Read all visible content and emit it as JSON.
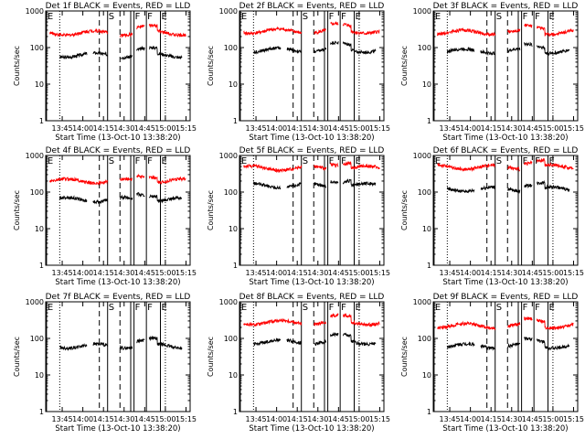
{
  "chart_data": [
    {
      "type": "line",
      "title": "Det 1f BLACK = Events, RED = LLD",
      "ylabel": "Counts/sec",
      "xlabel": "Start Time (13-Oct-10 13:38:20)",
      "x_ticks": [
        "13:45",
        "14:00",
        "14:15",
        "14:30",
        "14:45",
        "15:00",
        "15:15"
      ],
      "y_ticks": [
        "1",
        "10",
        "100",
        "1000"
      ],
      "xlim": [
        13.55,
        15.3
      ],
      "ylim": [
        1,
        1000
      ],
      "log_y": true,
      "series": [
        {
          "name": "Events",
          "color": "#000000",
          "level": 62
        },
        {
          "name": "LLD",
          "color": "#ff0000",
          "level": 250
        }
      ],
      "gaps": [
        [
          14.3,
          14.45
        ],
        [
          14.6,
          14.65
        ],
        [
          14.75,
          14.8
        ]
      ]
    },
    {
      "type": "line",
      "title": "Det 2f BLACK = Events, RED = LLD",
      "ylabel": "Counts/sec",
      "xlabel": "Start Time (13-Oct-10 13:38:20)",
      "x_ticks": [
        "13:45",
        "14:00",
        "14:15",
        "14:30",
        "14:45",
        "15:00",
        "15:15"
      ],
      "y_ticks": [
        "1",
        "10",
        "100",
        "1000"
      ],
      "xlim": [
        13.55,
        15.3
      ],
      "ylim": [
        1,
        1000
      ],
      "log_y": true,
      "series": [
        {
          "name": "Events",
          "color": "#000000",
          "level": 85
        },
        {
          "name": "LLD",
          "color": "#ff0000",
          "level": 280
        }
      ],
      "gaps": [
        [
          14.3,
          14.45
        ],
        [
          14.6,
          14.65
        ],
        [
          14.75,
          14.8
        ]
      ]
    },
    {
      "type": "line",
      "title": "Det 3f BLACK = Events, RED = LLD",
      "ylabel": "Counts/sec",
      "xlabel": "Start Time (13-Oct-10 13:38:20)",
      "x_ticks": [
        "13:45",
        "14:00",
        "14:15",
        "14:30",
        "14:45",
        "15:00",
        "15:15"
      ],
      "y_ticks": [
        "1",
        "10",
        "100",
        "1000"
      ],
      "xlim": [
        13.55,
        15.3
      ],
      "ylim": [
        1,
        1000
      ],
      "log_y": true,
      "series": [
        {
          "name": "Events",
          "color": "#000000",
          "level": 80
        },
        {
          "name": "LLD",
          "color": "#ff0000",
          "level": 260
        }
      ],
      "gaps": [
        [
          14.3,
          14.45
        ],
        [
          14.6,
          14.65
        ],
        [
          14.75,
          14.8
        ]
      ]
    },
    {
      "type": "line",
      "title": "Det 4f BLACK = Events, RED = LLD",
      "ylabel": "Counts/sec",
      "xlabel": "Start Time (13-Oct-10 13:38:20)",
      "x_ticks": [
        "13:45",
        "14:00",
        "14:15",
        "14:30",
        "14:45",
        "15:00",
        "15:15"
      ],
      "y_ticks": [
        "1",
        "10",
        "100",
        "1000"
      ],
      "xlim": [
        13.55,
        15.3
      ],
      "ylim": [
        1,
        1000
      ],
      "log_y": true,
      "series": [
        {
          "name": "Events",
          "color": "#000000",
          "level": 62
        },
        {
          "name": "LLD",
          "color": "#ff0000",
          "level": 200
        }
      ],
      "gaps": [
        [
          14.3,
          14.45
        ],
        [
          14.6,
          14.65
        ],
        [
          14.75,
          14.8
        ]
      ]
    },
    {
      "type": "line",
      "title": "Det 5f BLACK = Events, RED = LLD",
      "ylabel": "Counts/sec",
      "xlabel": "Start Time (13-Oct-10 13:38:20)",
      "x_ticks": [
        "13:45",
        "14:00",
        "14:15",
        "14:30",
        "14:45",
        "15:00",
        "15:15"
      ],
      "y_ticks": [
        "1",
        "10",
        "100",
        "1000"
      ],
      "xlim": [
        13.55,
        15.3
      ],
      "ylim": [
        1,
        1000
      ],
      "log_y": true,
      "series": [
        {
          "name": "Events",
          "color": "#000000",
          "level": 150
        },
        {
          "name": "LLD",
          "color": "#ff0000",
          "level": 450
        }
      ],
      "gaps": [
        [
          14.3,
          14.45
        ],
        [
          14.6,
          14.65
        ],
        [
          14.75,
          14.8
        ]
      ]
    },
    {
      "type": "line",
      "title": "Det 6f BLACK = Events, RED = LLD",
      "ylabel": "Counts/sec",
      "xlabel": "Start Time (13-Oct-10 13:38:20)",
      "x_ticks": [
        "13:45",
        "14:00",
        "14:15",
        "14:30",
        "14:45",
        "15:00",
        "15:15"
      ],
      "y_ticks": [
        "1",
        "10",
        "100",
        "1000"
      ],
      "xlim": [
        13.55,
        15.3
      ],
      "ylim": [
        1,
        1000
      ],
      "log_y": true,
      "series": [
        {
          "name": "Events",
          "color": "#000000",
          "level": 120
        },
        {
          "name": "LLD",
          "color": "#ff0000",
          "level": 480
        }
      ],
      "gaps": [
        [
          14.3,
          14.45
        ],
        [
          14.6,
          14.65
        ],
        [
          14.75,
          14.8
        ]
      ]
    },
    {
      "type": "line",
      "title": "Det 7f BLACK = Events, RED = LLD",
      "ylabel": "Counts/sec",
      "xlabel": "Start Time (13-Oct-10 13:38:20)",
      "x_ticks": [
        "13:45",
        "14:00",
        "14:15",
        "14:30",
        "14:45",
        "15:00",
        "15:15"
      ],
      "y_ticks": [
        "1",
        "10",
        "100",
        "1000"
      ],
      "xlim": [
        13.55,
        15.3
      ],
      "ylim": [
        1,
        1000
      ],
      "log_y": true,
      "series": [
        {
          "name": "Events",
          "color": "#000000",
          "level": 62
        }
      ],
      "gaps": [
        [
          14.3,
          14.45
        ],
        [
          14.6,
          14.65
        ],
        [
          14.75,
          14.8
        ]
      ]
    },
    {
      "type": "line",
      "title": "Det 8f BLACK = Events, RED = LLD",
      "ylabel": "Counts/sec",
      "xlabel": "Start Time (13-Oct-10 13:38:20)",
      "x_ticks": [
        "13:45",
        "14:00",
        "14:15",
        "14:30",
        "14:45",
        "15:00",
        "15:15"
      ],
      "y_ticks": [
        "1",
        "10",
        "100",
        "1000"
      ],
      "xlim": [
        13.55,
        15.3
      ],
      "ylim": [
        1,
        1000
      ],
      "log_y": true,
      "series": [
        {
          "name": "Events",
          "color": "#000000",
          "level": 80
        },
        {
          "name": "LLD",
          "color": "#ff0000",
          "level": 270
        }
      ],
      "gaps": [
        [
          14.3,
          14.45
        ],
        [
          14.6,
          14.65
        ],
        [
          14.75,
          14.8
        ]
      ]
    },
    {
      "type": "line",
      "title": "Det 9f BLACK = Events, RED = LLD",
      "ylabel": "Counts/sec",
      "xlabel": "Start Time (13-Oct-10 13:38:20)",
      "x_ticks": [
        "13:45",
        "14:00",
        "14:15",
        "14:30",
        "14:45",
        "15:00",
        "15:15"
      ],
      "y_ticks": [
        "1",
        "10",
        "100",
        "1000"
      ],
      "xlim": [
        13.55,
        15.3
      ],
      "ylim": [
        1,
        1000
      ],
      "log_y": true,
      "series": [
        {
          "name": "Events",
          "color": "#000000",
          "level": 62
        },
        {
          "name": "LLD",
          "color": "#ff0000",
          "level": 220
        }
      ],
      "gaps": [
        [
          14.3,
          14.45
        ],
        [
          14.6,
          14.65
        ],
        [
          14.75,
          14.8
        ]
      ]
    }
  ],
  "markers": [
    {
      "label": "E",
      "time": 13.56,
      "style": "solid"
    },
    {
      "label": "",
      "time": 13.72,
      "style": "dotted"
    },
    {
      "label": "",
      "time": 14.2,
      "style": "dashed"
    },
    {
      "label": "S",
      "time": 14.3,
      "style": "solid"
    },
    {
      "label": "",
      "time": 14.45,
      "style": "dashed"
    },
    {
      "label": "",
      "time": 14.58,
      "style": "solid"
    },
    {
      "label": "F",
      "time": 14.62,
      "style": "solid"
    },
    {
      "label": "F",
      "time": 14.77,
      "style": "solid"
    },
    {
      "label": "E",
      "time": 14.94,
      "style": "solid"
    },
    {
      "label": "",
      "time": 15.0,
      "style": "dotted"
    }
  ]
}
